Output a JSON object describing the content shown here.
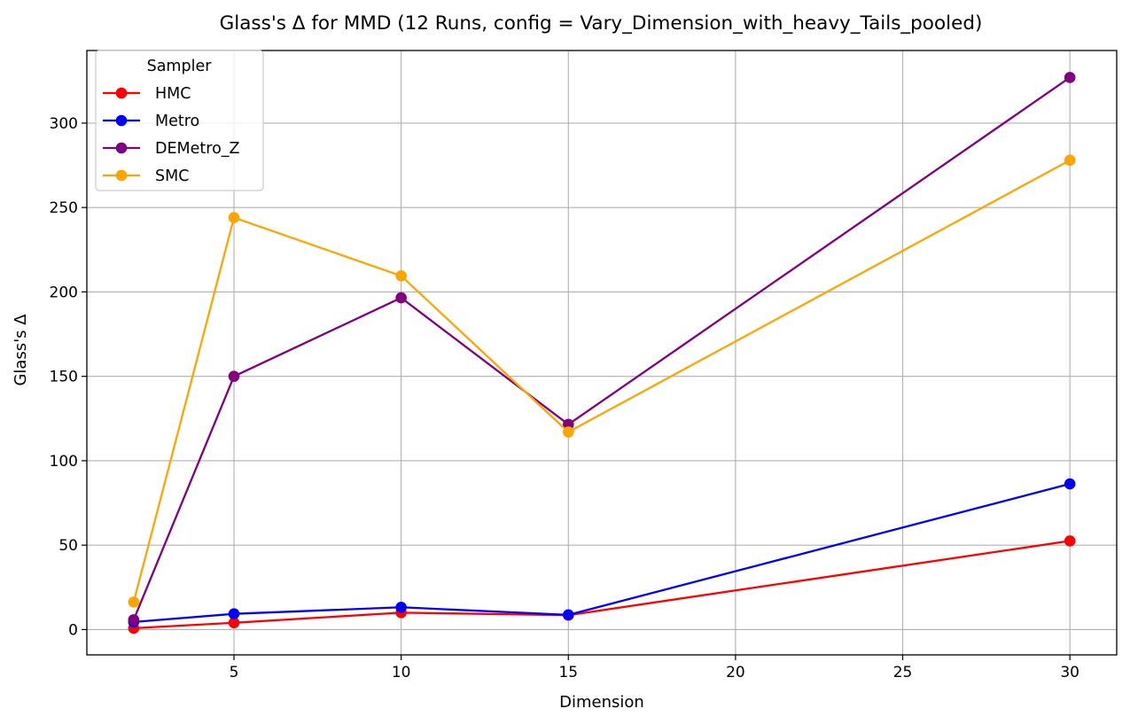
{
  "chart_data": {
    "type": "line",
    "title": "Glass's Δ for MMD (12 Runs, config = Vary_Dimension_with_heavy_Tails_pooled)",
    "xlabel": "Dimension",
    "ylabel": "Glass's Δ",
    "x": [
      2,
      5,
      10,
      15,
      30
    ],
    "xlim": [
      0.6,
      31.4
    ],
    "ylim": [
      -15,
      343
    ],
    "xticks": [
      5,
      10,
      15,
      20,
      25,
      30
    ],
    "yticks": [
      0,
      50,
      100,
      150,
      200,
      250,
      300
    ],
    "grid": true,
    "legend": {
      "title": "Sampler",
      "placement": "upper-left"
    },
    "series": [
      {
        "name": "HMC",
        "color": "#ff0000",
        "values": [
          0.8,
          4.0,
          10.0,
          8.5,
          52.5
        ]
      },
      {
        "name": "Metro",
        "color": "#0000ff",
        "values": [
          4.5,
          9.3,
          13.2,
          8.7,
          86.3
        ]
      },
      {
        "name": "DEMetro_Z",
        "color": "#800080",
        "values": [
          5.8,
          150.0,
          196.5,
          121.5,
          327.0
        ]
      },
      {
        "name": "SMC",
        "color": "#ffa500",
        "values": [
          16.3,
          244.0,
          209.5,
          117.0,
          278.0
        ]
      }
    ]
  }
}
